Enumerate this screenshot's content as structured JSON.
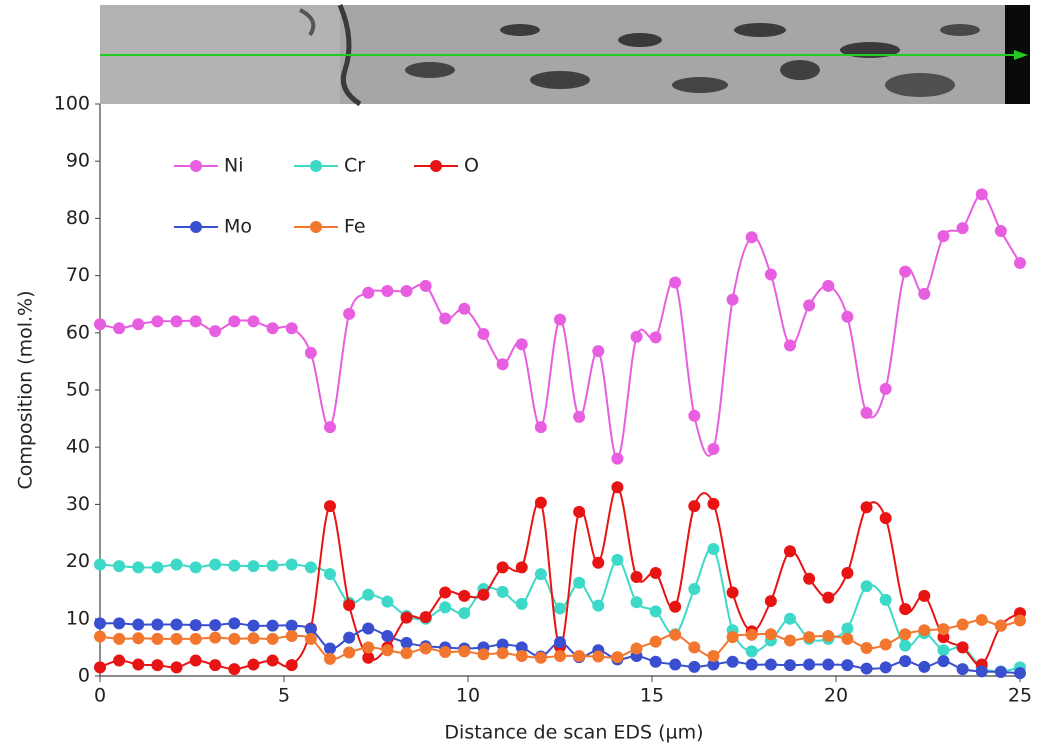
{
  "chart_data": {
    "type": "line",
    "xlabel": "Distance de scan EDS (µm)",
    "ylabel": "Composition (mol.%)",
    "x": [
      0,
      0.52,
      1.04,
      1.56,
      2.08,
      2.6,
      3.13,
      3.65,
      4.17,
      4.69,
      5.21,
      5.73,
      6.25,
      6.77,
      7.29,
      7.81,
      8.33,
      8.85,
      9.38,
      9.9,
      10.42,
      10.94,
      11.46,
      11.98,
      12.5,
      13.02,
      13.54,
      14.06,
      14.58,
      15.1,
      15.63,
      16.15,
      16.67,
      17.19,
      17.71,
      18.23,
      18.75,
      19.27,
      19.79,
      20.31,
      20.83,
      21.35,
      21.88,
      22.4,
      22.92,
      23.44,
      23.96,
      24.48,
      25
    ],
    "series": [
      {
        "name": "Ni",
        "color": "#e85ee0",
        "values": [
          61.5,
          60.8,
          61.5,
          62,
          62,
          62,
          60.3,
          62,
          62,
          60.8,
          60.8,
          56.5,
          43.5,
          63.3,
          67,
          67.3,
          67.3,
          68.2,
          62.5,
          64.2,
          59.8,
          54.5,
          58,
          43.5,
          62.3,
          45.3,
          56.8,
          38,
          59.3,
          59.2,
          68.8,
          45.5,
          39.7,
          65.8,
          76.7,
          70.2,
          57.8,
          64.8,
          68.2,
          62.8,
          46,
          50.2,
          70.7,
          66.8,
          76.9,
          78.3,
          84.2,
          77.8,
          72.2
        ]
      },
      {
        "name": "Cr",
        "color": "#3dd9c8",
        "values": [
          19.5,
          19.2,
          19,
          19,
          19.5,
          19,
          19.5,
          19.3,
          19.2,
          19.3,
          19.5,
          19,
          17.8,
          12.8,
          14.2,
          13,
          10.5,
          10,
          12,
          11,
          15.2,
          14.7,
          12.6,
          17.8,
          11.8,
          16.3,
          12.3,
          20.3,
          12.9,
          11.3,
          7.3,
          15.2,
          22.2,
          8,
          4.3,
          6.2,
          10,
          6.5,
          6.5,
          8.3,
          15.7,
          13.3,
          5.3,
          7.5,
          4.5,
          5,
          1.5,
          0.8,
          1.5
        ]
      },
      {
        "name": "O",
        "color": "#e81313",
        "values": [
          1.5,
          2.7,
          2,
          1.9,
          1.5,
          2.7,
          1.9,
          1.2,
          2,
          2.7,
          1.9,
          8.3,
          29.7,
          12.4,
          3.2,
          5,
          10.2,
          10.3,
          14.6,
          14,
          14.2,
          19,
          19,
          30.3,
          5.1,
          28.7,
          19.8,
          33,
          17.3,
          18,
          12.1,
          29.7,
          30.1,
          14.6,
          7.8,
          13.1,
          21.8,
          17,
          13.7,
          18,
          29.5,
          27.6,
          11.7,
          14,
          6.8,
          5,
          2,
          8.8,
          11
        ]
      },
      {
        "name": "Mo",
        "color": "#3a4fcf",
        "values": [
          9.2,
          9.2,
          9,
          9,
          9,
          8.9,
          8.9,
          9.2,
          8.8,
          8.8,
          8.8,
          8.2,
          4.8,
          6.7,
          8.3,
          7,
          5.8,
          5.2,
          5,
          4.8,
          5,
          5.5,
          5,
          3.4,
          5.9,
          3.3,
          4.5,
          2.9,
          3.5,
          2.5,
          2,
          1.6,
          2,
          2.5,
          2,
          2,
          1.9,
          2,
          2,
          1.9,
          1.3,
          1.5,
          2.6,
          1.6,
          2.6,
          1.2,
          0.8,
          0.7,
          0.5
        ]
      },
      {
        "name": "Fe",
        "color": "#f2762e",
        "values": [
          6.9,
          6.5,
          6.6,
          6.5,
          6.5,
          6.5,
          6.7,
          6.5,
          6.6,
          6.5,
          7,
          6.5,
          3,
          4.1,
          5,
          4.5,
          4,
          4.8,
          4.2,
          4.3,
          3.8,
          4,
          3.5,
          3.2,
          3.5,
          3.5,
          3.4,
          3.3,
          4.8,
          6,
          7.2,
          5,
          3.5,
          6.8,
          7.2,
          7.3,
          6.2,
          6.8,
          7,
          6.5,
          4.9,
          5.5,
          7.3,
          8,
          8.2,
          9,
          9.8,
          8.8,
          9.7
        ]
      }
    ],
    "xlim": [
      0,
      25
    ],
    "xticks": [
      0,
      5,
      10,
      15,
      20,
      25
    ],
    "ylim": [
      0,
      100
    ],
    "yticks": [
      0,
      10,
      20,
      30,
      40,
      50,
      60,
      70,
      80,
      90,
      100
    ],
    "grid": false
  }
}
